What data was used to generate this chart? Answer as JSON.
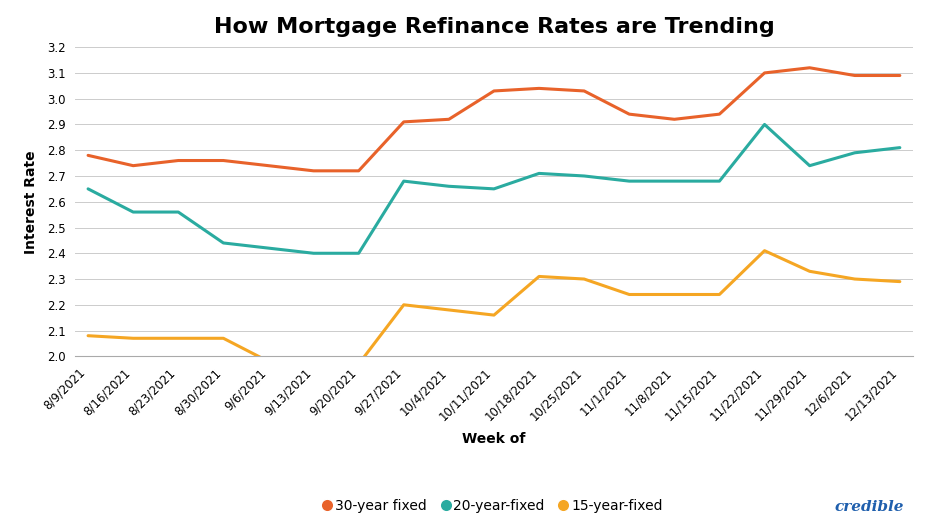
{
  "title": "How Mortgage Refinance Rates are Trending",
  "xlabel": "Week of",
  "ylabel": "Interest Rate",
  "ylim": [
    2.0,
    3.2
  ],
  "yticks": [
    2.0,
    2.1,
    2.2,
    2.3,
    2.4,
    2.5,
    2.6,
    2.7,
    2.8,
    2.9,
    3.0,
    3.1,
    3.2
  ],
  "dates": [
    "8/9/2021",
    "8/16/2021",
    "8/23/2021",
    "8/30/2021",
    "9/6/2021",
    "9/13/2021",
    "9/20/2021",
    "9/27/2021",
    "10/4/2021",
    "10/11/2021",
    "10/18/2021",
    "10/25/2021",
    "11/1/2021",
    "11/8/2021",
    "11/15/2021",
    "11/22/2021",
    "11/29/2021",
    "12/6/2021",
    "12/13/2021"
  ],
  "series_30yr": [
    2.78,
    2.74,
    2.76,
    2.76,
    2.74,
    2.72,
    2.72,
    2.91,
    2.92,
    3.03,
    3.04,
    3.03,
    2.94,
    2.92,
    2.94,
    3.1,
    3.12,
    3.09,
    3.09
  ],
  "series_20yr": [
    2.65,
    2.56,
    2.56,
    2.44,
    2.42,
    2.4,
    2.4,
    2.68,
    2.66,
    2.65,
    2.71,
    2.7,
    2.68,
    2.68,
    2.68,
    2.9,
    2.74,
    2.79,
    2.81
  ],
  "series_15yr": [
    2.08,
    2.07,
    2.07,
    2.07,
    1.98,
    1.97,
    1.97,
    2.2,
    2.18,
    2.16,
    2.31,
    2.3,
    2.24,
    2.24,
    2.24,
    2.41,
    2.33,
    2.3,
    2.29
  ],
  "color_30yr": "#E8622A",
  "color_20yr": "#2AABA0",
  "color_15yr": "#F5A623",
  "legend_labels": [
    "30-year fixed",
    "20-year-fixed",
    "15-year-fixed"
  ],
  "background_color": "#FFFFFF",
  "grid_color": "#CCCCCC",
  "title_fontsize": 16,
  "axis_label_fontsize": 10,
  "tick_fontsize": 8.5,
  "legend_fontsize": 10,
  "line_width": 2.2,
  "credible_text": "credible",
  "credible_color": "#1F5FAD"
}
